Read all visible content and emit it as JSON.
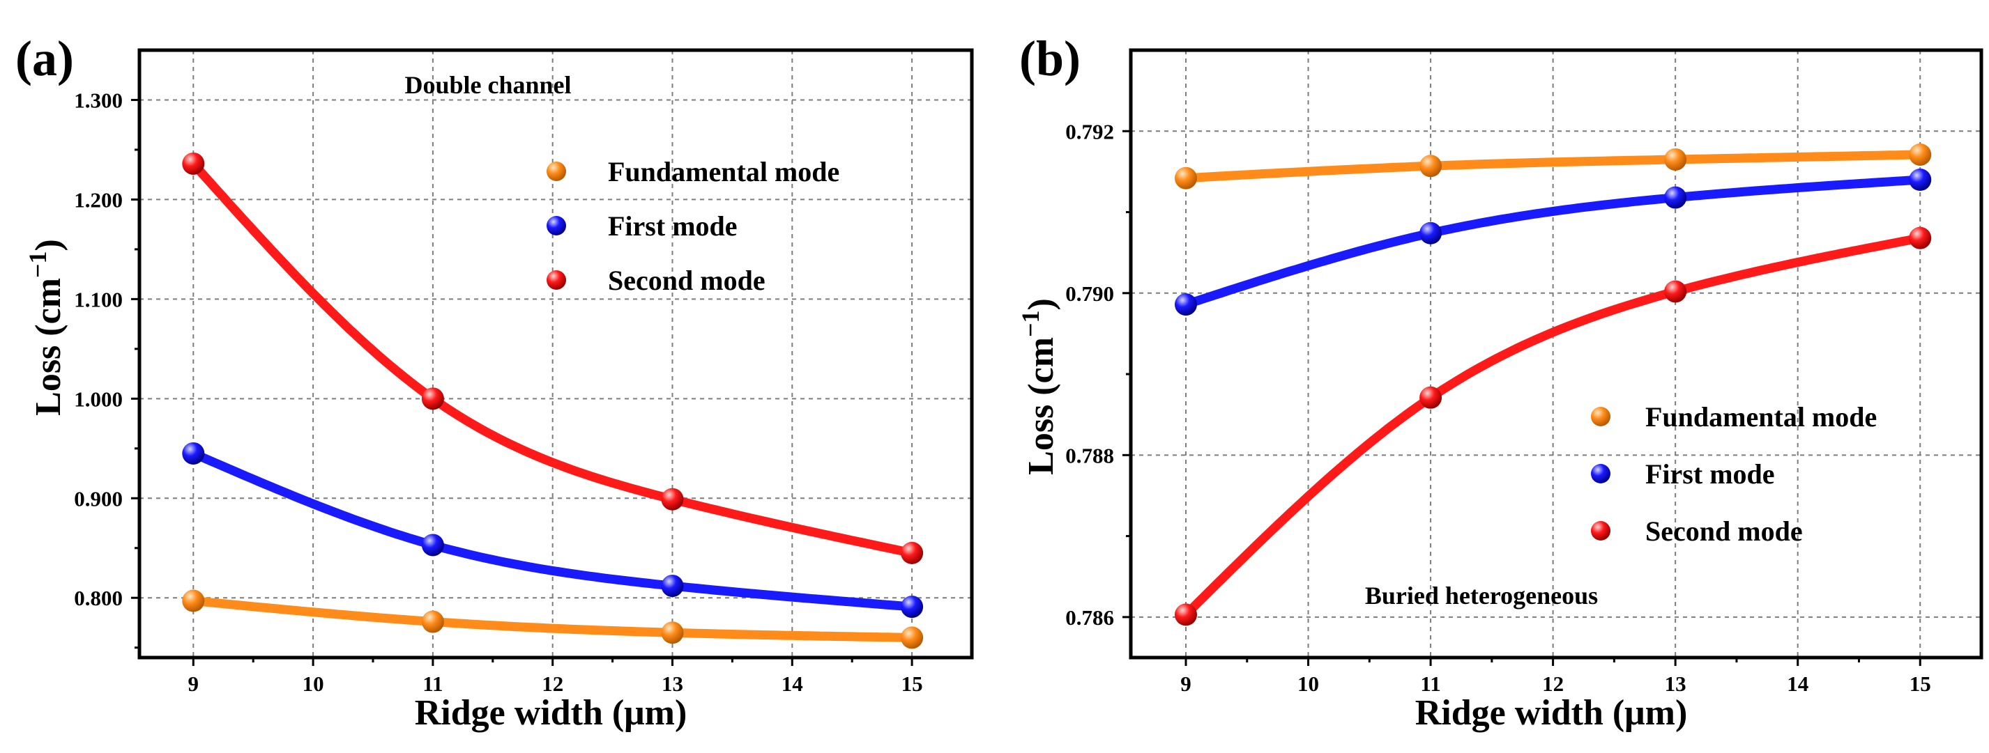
{
  "chart_data": [
    {
      "panel_label": "(a)",
      "type": "line",
      "annotation": "Double channel",
      "xlabel": "Ridge width (μm)",
      "ylabel_main": "Loss (cm",
      "ylabel_sup": "−1",
      "ylabel_close": ")",
      "xlim": [
        8.55,
        15.5
      ],
      "ylim": [
        0.74,
        1.35
      ],
      "xticks": [
        9,
        10,
        11,
        12,
        13,
        14,
        15
      ],
      "xtick_labels": [
        "9",
        "10",
        "11",
        "12",
        "13",
        "14",
        "15"
      ],
      "yticks": [
        0.8,
        0.9,
        1.0,
        1.1,
        1.2,
        1.3
      ],
      "ytick_labels": [
        "0.800",
        "0.900",
        "1.000",
        "1.100",
        "1.200",
        "1.300"
      ],
      "grid": true,
      "legend_position": "top-right",
      "x": [
        9,
        11,
        13,
        15
      ],
      "series": [
        {
          "name": "Fundamental mode",
          "color": "#ff8c1a",
          "values": [
            0.797,
            0.776,
            0.765,
            0.76
          ]
        },
        {
          "name": "First mode",
          "color": "#1a1aff",
          "values": [
            0.945,
            0.853,
            0.812,
            0.791
          ]
        },
        {
          "name": "Second mode",
          "color": "#ff1a1a",
          "values": [
            1.236,
            1.0,
            0.899,
            0.845
          ]
        }
      ]
    },
    {
      "panel_label": "(b)",
      "type": "line",
      "annotation": "Buried heterogeneous",
      "xlabel": "Ridge width (μm)",
      "ylabel_main": "Loss (cm",
      "ylabel_sup": "−1",
      "ylabel_close": ")",
      "xlim": [
        8.55,
        15.5
      ],
      "ylim": [
        0.7855,
        0.793
      ],
      "xticks": [
        9,
        10,
        11,
        12,
        13,
        14,
        15
      ],
      "xtick_labels": [
        "9",
        "10",
        "11",
        "12",
        "13",
        "14",
        "15"
      ],
      "yticks": [
        0.786,
        0.788,
        0.79,
        0.792
      ],
      "ytick_labels": [
        "0.786",
        "0.788",
        "0.790",
        "0.792"
      ],
      "grid": true,
      "legend_position": "center-right",
      "x": [
        9,
        11,
        13,
        15
      ],
      "series": [
        {
          "name": "Fundamental mode",
          "color": "#ff8c1a",
          "values": [
            0.79142,
            0.79157,
            0.79165,
            0.79171
          ]
        },
        {
          "name": "First mode",
          "color": "#1a1aff",
          "values": [
            0.78986,
            0.79074,
            0.79118,
            0.7914
          ]
        },
        {
          "name": "Second mode",
          "color": "#ff1a1a",
          "values": [
            0.78603,
            0.78871,
            0.79002,
            0.79068
          ]
        }
      ]
    }
  ]
}
